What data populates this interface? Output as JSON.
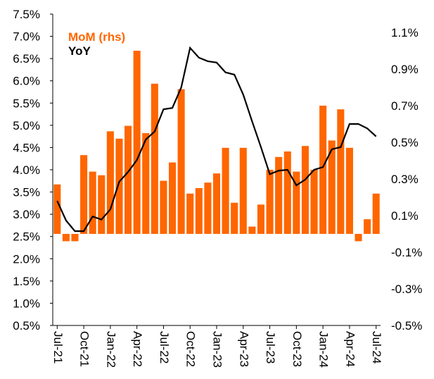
{
  "chart_data": {
    "type": "bar_line",
    "categories": [
      "Jul-21",
      null,
      null,
      "Oct-21",
      null,
      null,
      "Jan-22",
      null,
      null,
      "Apr-22",
      null,
      null,
      "Jul-22",
      null,
      null,
      "Oct-22",
      null,
      null,
      "Jan-23",
      null,
      null,
      "Apr-23",
      null,
      null,
      "Jul-23",
      null,
      null,
      "Oct-23",
      null,
      null,
      "Jan-24",
      null,
      null,
      "Apr-24",
      null,
      null,
      "Jul-24"
    ],
    "series": [
      {
        "name": "MoM (rhs)",
        "kind": "bar",
        "axis": "y2",
        "color": "#ff6600",
        "values": [
          0.27,
          -0.04,
          -0.04,
          0.43,
          0.34,
          0.32,
          0.56,
          0.52,
          0.59,
          1.0,
          0.55,
          0.82,
          0.29,
          0.39,
          0.79,
          0.22,
          0.25,
          0.28,
          0.33,
          0.47,
          0.17,
          0.47,
          0.04,
          0.16,
          0.35,
          0.42,
          0.45,
          0.34,
          0.48,
          0.35,
          0.7,
          0.51,
          0.68,
          0.47,
          -0.04,
          0.08,
          0.22
        ]
      },
      {
        "name": "YoY",
        "kind": "line",
        "axis": "y",
        "color": "#000000",
        "values": [
          3.3,
          2.86,
          2.62,
          2.62,
          2.95,
          2.88,
          3.11,
          3.73,
          3.95,
          4.22,
          4.68,
          4.86,
          5.36,
          5.39,
          5.85,
          6.74,
          6.52,
          6.44,
          6.41,
          6.19,
          6.14,
          5.69,
          5.09,
          4.51,
          3.9,
          3.98,
          4.0,
          3.65,
          3.78,
          4.0,
          4.06,
          4.46,
          4.51,
          5.03,
          5.03,
          4.93,
          4.75
        ]
      }
    ],
    "ylim": [
      0.5,
      7.5
    ],
    "yticks": [
      {
        "value": 0.5,
        "label": "0.5%"
      },
      {
        "value": 1.0,
        "label": "1.0%"
      },
      {
        "value": 1.5,
        "label": "1.5%"
      },
      {
        "value": 2.0,
        "label": "2.0%"
      },
      {
        "value": 2.5,
        "label": "2.5%"
      },
      {
        "value": 3.0,
        "label": "3.0%"
      },
      {
        "value": 3.5,
        "label": "3.5%"
      },
      {
        "value": 4.0,
        "label": "4.0%"
      },
      {
        "value": 4.5,
        "label": "4.5%"
      },
      {
        "value": 5.0,
        "label": "5.0%"
      },
      {
        "value": 5.5,
        "label": "5.5%"
      },
      {
        "value": 6.0,
        "label": "6.0%"
      },
      {
        "value": 6.5,
        "label": "6.5%"
      },
      {
        "value": 7.0,
        "label": "7.0%"
      },
      {
        "value": 7.5,
        "label": "7.5%"
      }
    ],
    "y2lim": [
      -0.5,
      1.2
    ],
    "y2ticks": [
      {
        "value": -0.5,
        "label": "-0.5%"
      },
      {
        "value": -0.3,
        "label": "-0.3%"
      },
      {
        "value": -0.1,
        "label": "-0.1%"
      },
      {
        "value": 0.1,
        "label": "0.1%"
      },
      {
        "value": 0.3,
        "label": "0.3%"
      },
      {
        "value": 0.5,
        "label": "0.5%"
      },
      {
        "value": 0.7,
        "label": "0.7%"
      },
      {
        "value": 0.9,
        "label": "0.9%"
      },
      {
        "value": 1.1,
        "label": "1.1%"
      }
    ],
    "legend": "upper left",
    "grid": false
  }
}
